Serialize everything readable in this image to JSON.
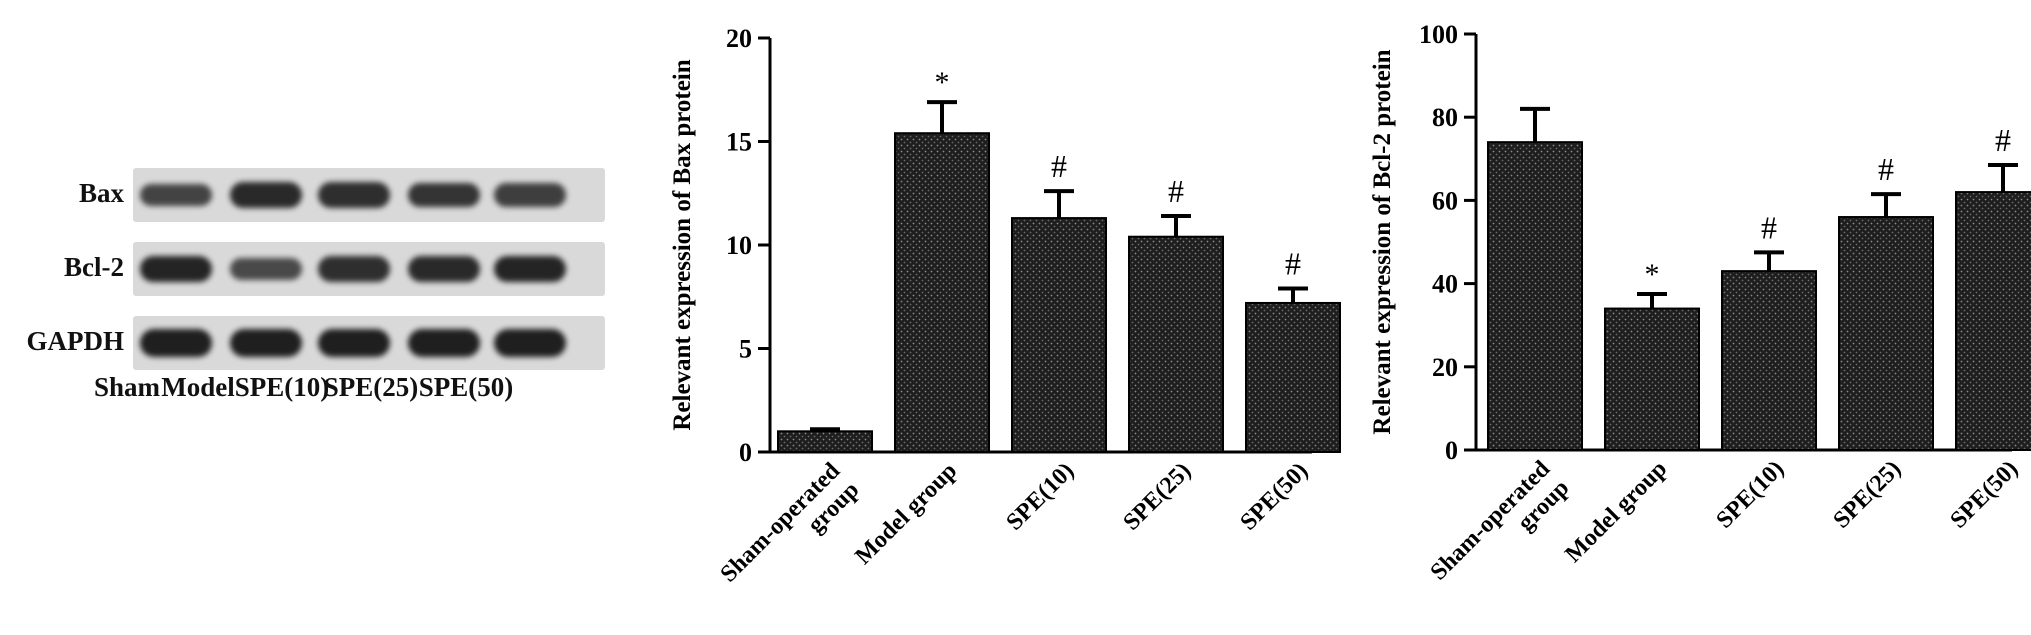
{
  "blot": {
    "rows": [
      "Bax",
      "Bcl-2",
      "GAPDH"
    ],
    "lanes": [
      "Sham",
      "Model",
      "SPE(10)",
      "SPE(25)",
      "SPE(50)"
    ],
    "band_intensity": [
      [
        0.6,
        0.85,
        0.8,
        0.75,
        0.65
      ],
      [
        0.9,
        0.55,
        0.8,
        0.85,
        0.9
      ],
      [
        0.95,
        0.95,
        0.95,
        0.95,
        0.95
      ]
    ]
  },
  "chart_data": [
    {
      "type": "bar",
      "categories": [
        "Sham-operated group",
        "Model group",
        "SPE(10)",
        "SPE(25)",
        "SPE(50)"
      ],
      "values": [
        1.0,
        15.4,
        11.3,
        10.4,
        7.2
      ],
      "errors": [
        0.1,
        1.5,
        1.3,
        1.0,
        0.7
      ],
      "annotations": [
        "",
        "*",
        "#",
        "#",
        "#"
      ],
      "title": "",
      "xlabel": "",
      "ylabel": "Relevant expression of Bax protein",
      "ylim": [
        0,
        20
      ],
      "yticks": [
        0,
        5,
        10,
        15,
        20
      ],
      "grid": false,
      "bar_color": "#1e1e1e"
    },
    {
      "type": "bar",
      "categories": [
        "Sham-operated group",
        "Model group",
        "SPE(10)",
        "SPE(25)",
        "SPE(50)"
      ],
      "values": [
        74,
        34,
        43,
        56,
        62
      ],
      "errors": [
        8,
        3.5,
        4.5,
        5.5,
        6.5
      ],
      "annotations": [
        "",
        "*",
        "#",
        "#",
        "#"
      ],
      "title": "",
      "xlabel": "",
      "ylabel": "Relevant expression of Bcl-2 protein",
      "ylim": [
        0,
        100
      ],
      "yticks": [
        0,
        20,
        40,
        60,
        80,
        100
      ],
      "grid": false,
      "bar_color": "#1e1e1e"
    }
  ]
}
